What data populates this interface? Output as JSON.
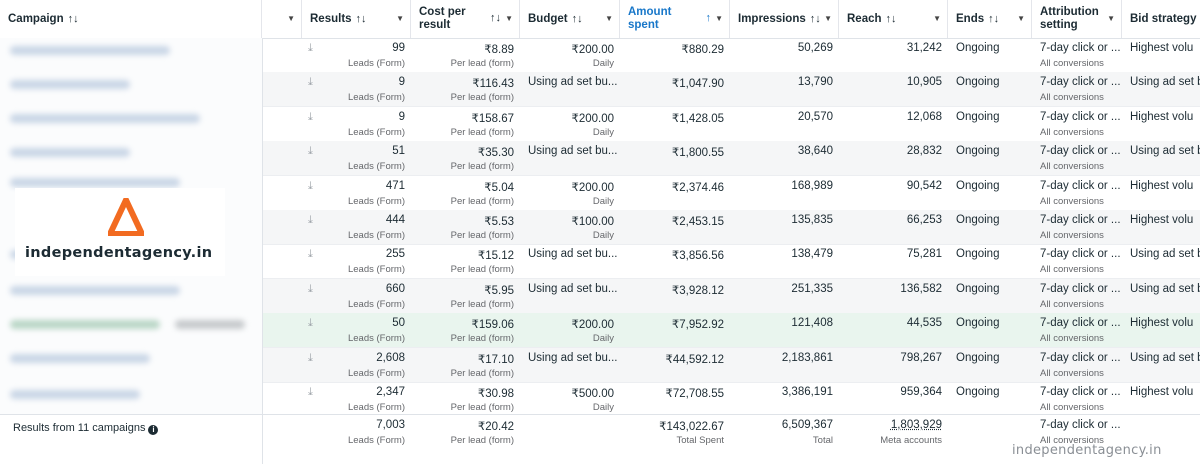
{
  "header": {
    "campaign": "Campaign",
    "results": "Results",
    "cost_per_result": "Cost per result",
    "budget": "Budget",
    "amount_spent": "Amount spent",
    "impressions": "Impressions",
    "reach": "Reach",
    "ends": "Ends",
    "attribution": "Attribution setting",
    "bid_strategy": "Bid strategy",
    "sort_glyph": "↑↓",
    "sort_active_glyph": "↑",
    "dropdown_glyph": "▼"
  },
  "logo": {
    "text": "independentagency.in",
    "accent": "#f26b21"
  },
  "watermark": "independentagency.in",
  "rows": [
    {
      "results": "99",
      "results_sub": "Leads (Form)",
      "cost": "₹8.89",
      "cost_sub": "Per lead (form)",
      "budget": "₹200.00",
      "budget_sub": "Daily",
      "spent": "₹880.29",
      "impressions": "50,269",
      "reach": "31,242",
      "ends": "Ongoing",
      "attr": "7-day click or ...",
      "attr_sub": "All conversions",
      "bid": "Highest volu"
    },
    {
      "results": "9",
      "results_sub": "Leads (Form)",
      "cost": "₹116.43",
      "cost_sub": "Per lead (form)",
      "budget": "Using ad set bu...",
      "budget_sub": "",
      "spent": "₹1,047.90",
      "impressions": "13,790",
      "reach": "10,905",
      "ends": "Ongoing",
      "attr": "7-day click or ...",
      "attr_sub": "All conversions",
      "bid": "Using ad set bic"
    },
    {
      "results": "9",
      "results_sub": "Leads (Form)",
      "cost": "₹158.67",
      "cost_sub": "Per lead (form)",
      "budget": "₹200.00",
      "budget_sub": "Daily",
      "spent": "₹1,428.05",
      "impressions": "20,570",
      "reach": "12,068",
      "ends": "Ongoing",
      "attr": "7-day click or ...",
      "attr_sub": "All conversions",
      "bid": "Highest volu"
    },
    {
      "results": "51",
      "results_sub": "Leads (Form)",
      "cost": "₹35.30",
      "cost_sub": "Per lead (form)",
      "budget": "Using ad set bu...",
      "budget_sub": "",
      "spent": "₹1,800.55",
      "impressions": "38,640",
      "reach": "28,832",
      "ends": "Ongoing",
      "attr": "7-day click or ...",
      "attr_sub": "All conversions",
      "bid": "Using ad set bic"
    },
    {
      "results": "471",
      "results_sub": "Leads (Form)",
      "cost": "₹5.04",
      "cost_sub": "Per lead (form)",
      "budget": "₹200.00",
      "budget_sub": "Daily",
      "spent": "₹2,374.46",
      "impressions": "168,989",
      "reach": "90,542",
      "ends": "Ongoing",
      "attr": "7-day click or ...",
      "attr_sub": "All conversions",
      "bid": "Highest volu"
    },
    {
      "results": "444",
      "results_sub": "Leads (Form)",
      "cost": "₹5.53",
      "cost_sub": "Per lead (form)",
      "budget": "₹100.00",
      "budget_sub": "Daily",
      "spent": "₹2,453.15",
      "impressions": "135,835",
      "reach": "66,253",
      "ends": "Ongoing",
      "attr": "7-day click or ...",
      "attr_sub": "All conversions",
      "bid": "Highest volu"
    },
    {
      "results": "255",
      "results_sub": "Leads (Form)",
      "cost": "₹15.12",
      "cost_sub": "Per lead (form)",
      "budget": "Using ad set bu...",
      "budget_sub": "",
      "spent": "₹3,856.56",
      "impressions": "138,479",
      "reach": "75,281",
      "ends": "Ongoing",
      "attr": "7-day click or ...",
      "attr_sub": "All conversions",
      "bid": "Using ad set bic"
    },
    {
      "results": "660",
      "results_sub": "Leads (Form)",
      "cost": "₹5.95",
      "cost_sub": "Per lead (form)",
      "budget": "Using ad set bu...",
      "budget_sub": "",
      "spent": "₹3,928.12",
      "impressions": "251,335",
      "reach": "136,582",
      "ends": "Ongoing",
      "attr": "7-day click or ...",
      "attr_sub": "All conversions",
      "bid": "Using ad set bic"
    },
    {
      "results": "50",
      "results_sub": "Leads (Form)",
      "cost": "₹159.06",
      "cost_sub": "Per lead (form)",
      "budget": "₹200.00",
      "budget_sub": "Daily",
      "spent": "₹7,952.92",
      "impressions": "121,408",
      "reach": "44,535",
      "ends": "Ongoing",
      "attr": "7-day click or ...",
      "attr_sub": "All conversions",
      "bid": "Highest volu"
    },
    {
      "results": "2,608",
      "results_sub": "Leads (Form)",
      "cost": "₹17.10",
      "cost_sub": "Per lead (form)",
      "budget": "Using ad set bu...",
      "budget_sub": "",
      "spent": "₹44,592.12",
      "impressions": "2,183,861",
      "reach": "798,267",
      "ends": "Ongoing",
      "attr": "7-day click or ...",
      "attr_sub": "All conversions",
      "bid": "Using ad set bic"
    },
    {
      "results": "2,347",
      "results_sub": "Leads (Form)",
      "cost": "₹30.98",
      "cost_sub": "Per lead (form)",
      "budget": "₹500.00",
      "budget_sub": "Daily",
      "spent": "₹72,708.55",
      "impressions": "3,386,191",
      "reach": "959,364",
      "ends": "Ongoing",
      "attr": "7-day click or ...",
      "attr_sub": "All conversions",
      "bid": "Highest volu"
    }
  ],
  "footer": {
    "title": "Results from 11 campaigns",
    "results": "7,003",
    "results_sub": "Leads (Form)",
    "cost": "₹20.42",
    "cost_sub": "Per lead (form)",
    "spent": "₹143,022.67",
    "spent_sub": "Total Spent",
    "impressions": "6,509,367",
    "impressions_sub": "Total",
    "reach": "1,803,929",
    "reach_sub": "Meta accounts",
    "attr": "7-day click or ...",
    "attr_sub": "All conversions"
  }
}
